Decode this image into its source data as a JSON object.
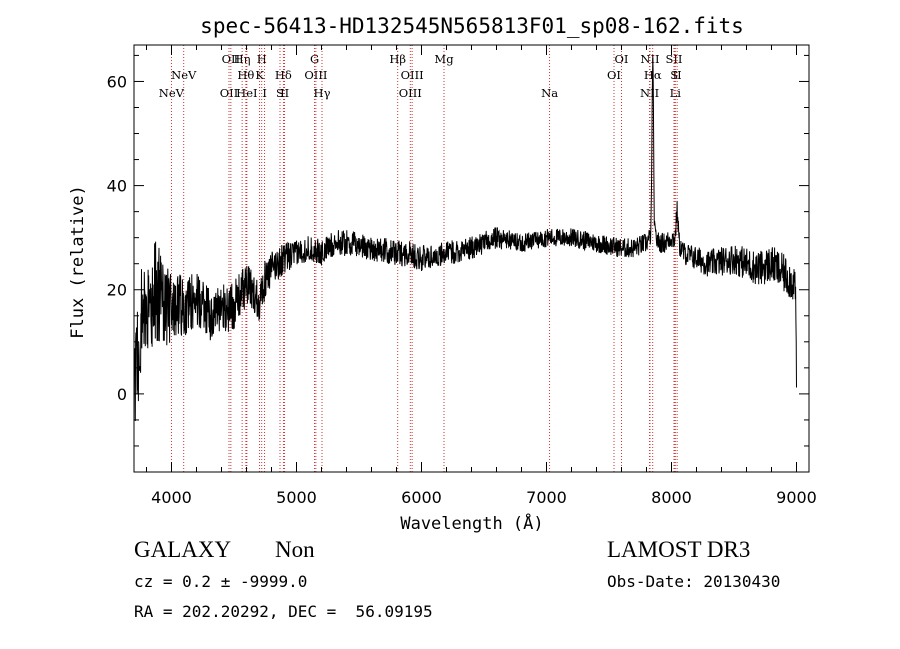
{
  "chart_data": {
    "type": "line",
    "title": "spec-56413-HD132545N565813F01_sp08-162.fits",
    "xlabel": "Wavelength (Å)",
    "ylabel": "Flux (relative)",
    "xlim": [
      3700,
      9100
    ],
    "ylim": [
      -15,
      67
    ],
    "xticks": [
      4000,
      5000,
      6000,
      7000,
      8000,
      9000
    ],
    "xtick_labels": [
      "4000",
      "5000",
      "6000",
      "7000",
      "8000",
      "9000"
    ],
    "yticks": [
      0,
      20,
      40,
      60
    ],
    "ytick_labels": [
      "0",
      "20",
      "40",
      "60"
    ],
    "spectrum_anchors": {
      "x": [
        3700,
        3750,
        3800,
        3850,
        3900,
        3950,
        4000,
        4100,
        4200,
        4300,
        4400,
        4500,
        4600,
        4700,
        4750,
        4800,
        4900,
        5000,
        5100,
        5200,
        5300,
        5400,
        5600,
        5800,
        5900,
        6000,
        6200,
        6400,
        6600,
        6800,
        7000,
        7200,
        7400,
        7600,
        7700,
        7800,
        7850,
        7900,
        7950,
        8000,
        8050,
        8100,
        8200,
        8300,
        8500,
        8700,
        8800,
        8900,
        9000
      ],
      "y": [
        5,
        12,
        16,
        19,
        20,
        18,
        16,
        17,
        18,
        15,
        16,
        17,
        21,
        18,
        22,
        24,
        26,
        27,
        28,
        27,
        29,
        29,
        28,
        27,
        27,
        26,
        27,
        28,
        30,
        29,
        30,
        30,
        29,
        28,
        28,
        29,
        31,
        29,
        29,
        30,
        29,
        27,
        26,
        25,
        26,
        24,
        25,
        23,
        21
      ]
    },
    "noise_amplitude": {
      "x": [
        3700,
        3900,
        4100,
        4400,
        4700,
        5000,
        6000,
        7000,
        8000,
        8500,
        9000
      ],
      "y": [
        12,
        10,
        6,
        5,
        4,
        2.5,
        2.5,
        1.8,
        2,
        3,
        4
      ]
    },
    "emission_peaks": [
      {
        "x": 7850,
        "height": 33,
        "width": 6
      },
      {
        "x": 8045,
        "height": 6,
        "width": 8
      }
    ],
    "line_markers": [
      {
        "wave": 3999,
        "label": "NeV",
        "row": 2
      },
      {
        "wave": 4098,
        "label": "NeV",
        "row": 1
      },
      {
        "wave": 4460,
        "label": "OII",
        "row": 2
      },
      {
        "wave": 4475,
        "label": "OII",
        "row": 0
      },
      {
        "wave": 4565,
        "label": "Hη",
        "row": 0
      },
      {
        "wave": 4595,
        "label": "Hθ",
        "row": 1
      },
      {
        "wave": 4603,
        "label": "HeI",
        "row": 2
      },
      {
        "wave": 4705,
        "label": "K",
        "row": 1
      },
      {
        "wave": 4722,
        "label": "H",
        "row": 0
      },
      {
        "wave": 4745,
        "label": "I",
        "row": 2
      },
      {
        "wave": 4868,
        "label": "S",
        "row": 2
      },
      {
        "wave": 4895,
        "label": "Hδ",
        "row": 1
      },
      {
        "wave": 4905,
        "label": "II",
        "row": 2
      },
      {
        "wave": 5145,
        "label": "G",
        "row": 0
      },
      {
        "wave": 5155,
        "label": "OIII",
        "row": 1
      },
      {
        "wave": 5204,
        "label": "Hγ",
        "row": 2
      },
      {
        "wave": 5810,
        "label": "Hβ",
        "row": 0
      },
      {
        "wave": 5925,
        "label": "OIII",
        "row": 1
      },
      {
        "wave": 5910,
        "label": "OIII",
        "row": 2
      },
      {
        "wave": 6180,
        "label": "Mg",
        "row": 0
      },
      {
        "wave": 7025,
        "label": "Na",
        "row": 2
      },
      {
        "wave": 7540,
        "label": "OI",
        "row": 1
      },
      {
        "wave": 7600,
        "label": "OI",
        "row": 0
      },
      {
        "wave": 7828,
        "label": "NII",
        "row": 0
      },
      {
        "wave": 7850,
        "label": "Hα",
        "row": 1
      },
      {
        "wave": 7825,
        "label": "NII",
        "row": 2
      },
      {
        "wave": 8020,
        "label": "SII",
        "row": 0
      },
      {
        "wave": 8022,
        "label": "S",
        "row": 1
      },
      {
        "wave": 8045,
        "label": "II",
        "row": 1
      },
      {
        "wave": 8030,
        "label": "Li",
        "row": 2
      }
    ],
    "colors": {
      "spectrum": "#000000",
      "marker_line": "#cc0000",
      "axis": "#000000"
    }
  },
  "info": {
    "object_class": "GALAXY",
    "subclass": "Non",
    "survey": "LAMOST DR3",
    "redshift": "cz = 0.2 ± -9999.0",
    "obs_date": "Obs-Date: 20130430",
    "coords": "RA = 202.20292, DEC =  56.09195"
  }
}
